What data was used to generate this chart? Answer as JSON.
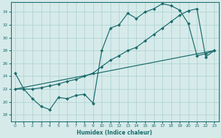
{
  "xlabel": "Humidex (Indice chaleur)",
  "background_color": "#d6eaea",
  "grid_color": "#a8cece",
  "line_color": "#1a6b6b",
  "xlim": [
    -0.5,
    23.5
  ],
  "ylim": [
    17.0,
    35.5
  ],
  "xticks": [
    0,
    1,
    2,
    3,
    4,
    5,
    6,
    7,
    8,
    9,
    10,
    11,
    12,
    13,
    14,
    15,
    16,
    17,
    18,
    19,
    20,
    21,
    22,
    23
  ],
  "yticks": [
    18,
    20,
    22,
    24,
    26,
    28,
    30,
    32,
    34
  ],
  "series1_x": [
    0,
    1,
    2,
    3,
    4,
    5,
    6,
    7,
    8,
    9,
    10,
    11,
    12,
    13,
    14,
    15,
    16,
    17,
    18,
    19,
    20,
    21,
    22,
    23
  ],
  "series1_y": [
    24.5,
    22.0,
    20.5,
    19.3,
    18.8,
    20.7,
    20.5,
    21.0,
    21.2,
    19.8,
    28.0,
    31.5,
    32.0,
    33.8,
    33.0,
    34.0,
    34.5,
    35.3,
    35.0,
    34.3,
    32.2,
    27.2,
    27.5,
    28.0
  ],
  "series2_x": [
    0,
    1,
    2,
    3,
    4,
    5,
    6,
    7,
    8,
    9,
    10,
    11,
    12,
    13,
    14,
    15,
    16,
    17,
    18,
    19,
    20,
    21,
    22,
    23
  ],
  "series2_y": [
    22.0,
    22.0,
    22.0,
    22.2,
    22.5,
    22.8,
    23.2,
    23.5,
    24.0,
    24.5,
    25.5,
    26.5,
    27.2,
    28.0,
    28.5,
    29.5,
    30.5,
    31.5,
    32.5,
    33.5,
    34.2,
    34.5,
    27.0,
    28.0
  ],
  "series3_x": [
    0,
    23
  ],
  "series3_y": [
    22.0,
    28.0
  ]
}
